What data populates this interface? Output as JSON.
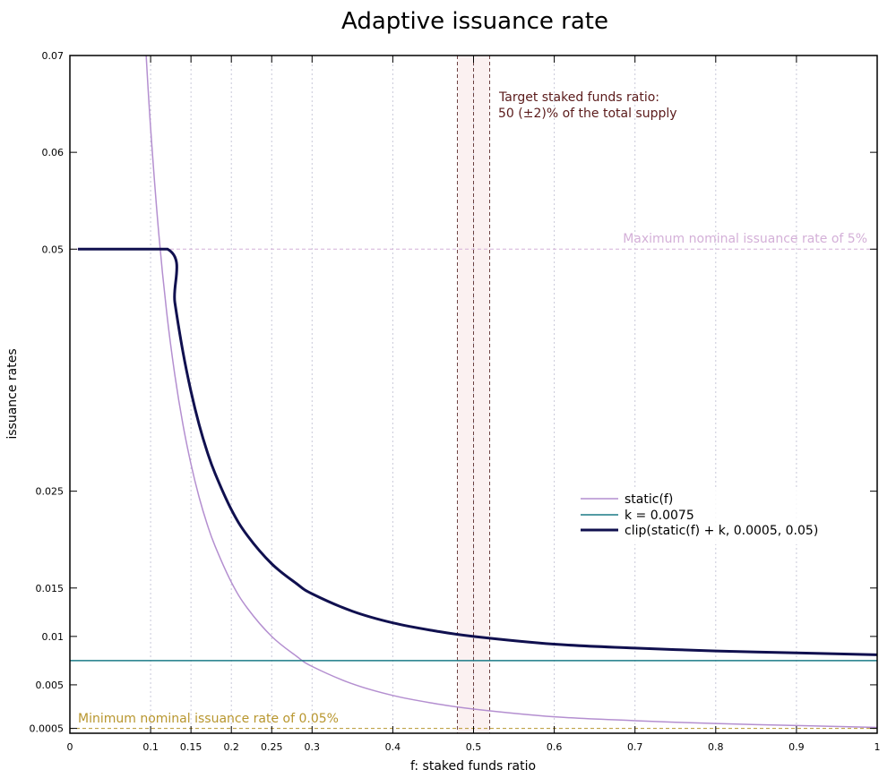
{
  "chart_data": {
    "type": "line",
    "title": "Adaptive issuance rate",
    "xlabel": "f: staked funds ratio",
    "ylabel": "issuance rates",
    "xlim": [
      0,
      1
    ],
    "ylim": [
      0,
      0.07
    ],
    "grid": "vertical dotted at x ticks",
    "x_ticks": [
      0,
      0.1,
      0.15,
      0.2,
      0.25,
      0.3,
      0.4,
      0.5,
      0.6,
      0.7,
      0.8,
      0.9,
      1
    ],
    "x_tick_labels": [
      "0",
      "0.1",
      "0.15",
      "0.2",
      "0.25",
      "0.3",
      "0.4",
      "0.5",
      "0.6",
      "0.7",
      "0.8",
      "0.9",
      "1"
    ],
    "y_ticks": [
      0.0005,
      0.005,
      0.01,
      0.015,
      0.025,
      0.05,
      0.06,
      0.07
    ],
    "y_tick_labels": [
      "0.0005",
      "0.005",
      "0.01",
      "0.015",
      "0.025",
      "0.05",
      "0.06",
      "0.07"
    ],
    "legend_placement": "center-right",
    "series": [
      {
        "name": "static(f)",
        "color": "#b48fd0",
        "x": [
          0.094,
          0.1,
          0.11,
          0.12,
          0.13,
          0.14,
          0.15,
          0.16,
          0.17,
          0.18,
          0.2,
          0.22,
          0.25,
          0.28,
          0.3,
          0.35,
          0.4,
          0.45,
          0.5,
          0.6,
          0.7,
          0.8,
          0.9,
          1
        ],
        "y": [
          0.0707,
          0.0625,
          0.0517,
          0.0434,
          0.037,
          0.0319,
          0.0278,
          0.0244,
          0.0216,
          0.0193,
          0.0156,
          0.0129,
          0.01,
          0.008,
          0.0069,
          0.0051,
          0.0039,
          0.0031,
          0.0025,
          0.0017,
          0.0013,
          0.001,
          0.0008,
          0.0006
        ]
      },
      {
        "name": "k = 0.0075",
        "color": "#1a7a86",
        "x": [
          0,
          1
        ],
        "y": [
          0.0075,
          0.0075
        ]
      },
      {
        "name": "clip(static(f) + k, 0.0005, 0.05)",
        "color": "#10104f",
        "x": [
          0.01,
          0.121,
          0.13,
          0.14,
          0.15,
          0.16,
          0.17,
          0.18,
          0.2,
          0.22,
          0.25,
          0.28,
          0.3,
          0.35,
          0.4,
          0.45,
          0.5,
          0.6,
          0.7,
          0.8,
          0.9,
          1
        ],
        "y": [
          0.05,
          0.05,
          0.0445,
          0.0394,
          0.0353,
          0.0319,
          0.0291,
          0.0268,
          0.0231,
          0.0204,
          0.0175,
          0.0155,
          0.0144,
          0.0126,
          0.0114,
          0.0106,
          0.01,
          0.0092,
          0.0088,
          0.0085,
          0.0083,
          0.0081
        ]
      }
    ],
    "reference_lines": {
      "max": {
        "y": 0.05,
        "label": "Maximum nominal issuance rate of 5%",
        "color": "#d4b0d8"
      },
      "min": {
        "y": 0.0005,
        "label": "Minimum nominal issuance rate of 0.05%",
        "color": "#b8962e"
      },
      "target": {
        "x": [
          0.48,
          0.5,
          0.52
        ],
        "color": "#6b4040",
        "band_color": "#fbf1f1"
      }
    },
    "annotations": {
      "target_line1": "Target staked funds ratio:",
      "target_line2": "50 (±2)% of the total supply",
      "color": "#5a1a1a"
    }
  }
}
